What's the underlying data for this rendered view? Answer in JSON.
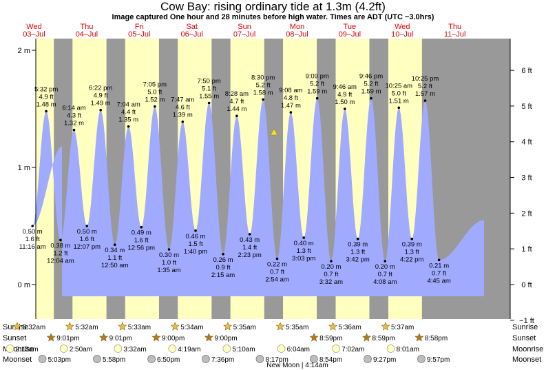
{
  "header": {
    "title": "Cow Bay: rising  ordinary tide at 1.3m (4.2ft)",
    "subtitle": "Image captured One hour and 28 minutes before high water. Times are ADT (UTC −3.0hrs)"
  },
  "chart_data": {
    "type": "area",
    "title": "Cow Bay: rising  ordinary tide at 1.3m (4.2ft)",
    "y_left_unit": "m",
    "y_right_unit": "ft",
    "y_left_ticks": [
      "0 m",
      "1 m",
      "2 m"
    ],
    "y_right_ticks": [
      "−1 ft",
      "0 ft",
      "1 ft",
      "2 ft",
      "3 ft",
      "4 ft",
      "5 ft",
      "6 ft"
    ],
    "ylim_m": [
      -0.2,
      2.07
    ],
    "days": [
      {
        "name": "Wed",
        "date": "03–Jul"
      },
      {
        "name": "Thu",
        "date": "04–Jul"
      },
      {
        "name": "Fri",
        "date": "05–Jul"
      },
      {
        "name": "Sat",
        "date": "06–Jul"
      },
      {
        "name": "Sun",
        "date": "07–Jul"
      },
      {
        "name": "Mon",
        "date": "08–Jul"
      },
      {
        "name": "Tue",
        "date": "09–Jul"
      },
      {
        "name": "Wed",
        "date": "10–Jul"
      },
      {
        "name": "Thu",
        "date": "11–Jul"
      }
    ],
    "tides": [
      {
        "day": 0,
        "time": "11:16 am",
        "m": "0.50 m",
        "ft": "1.6 ft",
        "h": 11.27,
        "v": 0.5,
        "type": "low"
      },
      {
        "day": 0,
        "time": "5:32 pm",
        "m": "1.48 m",
        "ft": "4.9 ft",
        "h": 17.53,
        "v": 1.48,
        "type": "high"
      },
      {
        "day": 1,
        "time": "12:04 am",
        "m": "0.38 m",
        "ft": "1.2 ft",
        "h": 0.07,
        "v": 0.38,
        "type": "low"
      },
      {
        "day": 1,
        "time": "6:14 am",
        "m": "1.32 m",
        "ft": "4.3 ft",
        "h": 6.23,
        "v": 1.32,
        "type": "high"
      },
      {
        "day": 1,
        "time": "12:07 pm",
        "m": "0.50 m",
        "ft": "1.6 ft",
        "h": 12.12,
        "v": 0.5,
        "type": "low"
      },
      {
        "day": 1,
        "time": "6:22 pm",
        "m": "1.49 m",
        "ft": "4.9 ft",
        "h": 18.37,
        "v": 1.49,
        "type": "high"
      },
      {
        "day": 2,
        "time": "12:50 am",
        "m": "0.34 m",
        "ft": "1.1 ft",
        "h": 0.83,
        "v": 0.34,
        "type": "low"
      },
      {
        "day": 2,
        "time": "7:04 am",
        "m": "1.35 m",
        "ft": "4.4 ft",
        "h": 7.07,
        "v": 1.35,
        "type": "high"
      },
      {
        "day": 2,
        "time": "12:56 pm",
        "m": "0.49 m",
        "ft": "1.6 ft",
        "h": 12.93,
        "v": 0.49,
        "type": "low"
      },
      {
        "day": 2,
        "time": "7:05 pm",
        "m": "1.52 m",
        "ft": "5.0 ft",
        "h": 19.08,
        "v": 1.52,
        "type": "high"
      },
      {
        "day": 3,
        "time": "1:35 am",
        "m": "0.30 m",
        "ft": "1.0 ft",
        "h": 1.58,
        "v": 0.3,
        "type": "low"
      },
      {
        "day": 3,
        "time": "7:47 am",
        "m": "1.39 m",
        "ft": "4.6 ft",
        "h": 7.78,
        "v": 1.39,
        "type": "high"
      },
      {
        "day": 3,
        "time": "1:40 pm",
        "m": "0.46 m",
        "ft": "1.5 ft",
        "h": 13.67,
        "v": 0.46,
        "type": "low"
      },
      {
        "day": 3,
        "time": "7:50 pm",
        "m": "1.55 m",
        "ft": "5.1 ft",
        "h": 19.83,
        "v": 1.55,
        "type": "high"
      },
      {
        "day": 4,
        "time": "2:15 am",
        "m": "0.26 m",
        "ft": "0.9 ft",
        "h": 2.25,
        "v": 0.26,
        "type": "low"
      },
      {
        "day": 4,
        "time": "8:28 am",
        "m": "1.44 m",
        "ft": "4.7 ft",
        "h": 8.47,
        "v": 1.44,
        "type": "high"
      },
      {
        "day": 4,
        "time": "2:23 pm",
        "m": "0.43 m",
        "ft": "1.4 ft",
        "h": 14.38,
        "v": 0.43,
        "type": "low"
      },
      {
        "day": 4,
        "time": "8:30 pm",
        "m": "1.58 m",
        "ft": "5.2 ft",
        "h": 20.5,
        "v": 1.58,
        "type": "high"
      },
      {
        "day": 5,
        "time": "2:54 am",
        "m": "0.22 m",
        "ft": "0.7 ft",
        "h": 2.9,
        "v": 0.22,
        "type": "low"
      },
      {
        "day": 5,
        "time": "9:08 am",
        "m": "1.47 m",
        "ft": "4.8 ft",
        "h": 9.13,
        "v": 1.47,
        "type": "high"
      },
      {
        "day": 5,
        "time": "3:03 pm",
        "m": "0.40 m",
        "ft": "1.3 ft",
        "h": 15.05,
        "v": 0.4,
        "type": "low"
      },
      {
        "day": 5,
        "time": "9:09 pm",
        "m": "1.59 m",
        "ft": "5.2 ft",
        "h": 21.15,
        "v": 1.59,
        "type": "high"
      },
      {
        "day": 6,
        "time": "3:32 am",
        "m": "0.20 m",
        "ft": "0.7 ft",
        "h": 3.53,
        "v": 0.2,
        "type": "low"
      },
      {
        "day": 6,
        "time": "9:46 am",
        "m": "1.50 m",
        "ft": "4.9 ft",
        "h": 9.77,
        "v": 1.5,
        "type": "high"
      },
      {
        "day": 6,
        "time": "3:42 pm",
        "m": "0.39 m",
        "ft": "1.3 ft",
        "h": 15.7,
        "v": 0.39,
        "type": "low"
      },
      {
        "day": 6,
        "time": "9:46 pm",
        "m": "1.59 m",
        "ft": "5.2 ft",
        "h": 21.77,
        "v": 1.59,
        "type": "high"
      },
      {
        "day": 7,
        "time": "4:08 am",
        "m": "0.20 m",
        "ft": "0.7 ft",
        "h": 4.13,
        "v": 0.2,
        "type": "low"
      },
      {
        "day": 7,
        "time": "10:25 am",
        "m": "1.51 m",
        "ft": "5.0 ft",
        "h": 10.42,
        "v": 1.51,
        "type": "high"
      },
      {
        "day": 7,
        "time": "4:22 pm",
        "m": "0.39 m",
        "ft": "1.3 ft",
        "h": 16.37,
        "v": 0.39,
        "type": "low"
      },
      {
        "day": 7,
        "time": "10:25 pm",
        "m": "1.57 m",
        "ft": "5.2 ft",
        "h": 22.42,
        "v": 1.57,
        "type": "high"
      },
      {
        "day": 8,
        "time": "4:45 am",
        "m": "0.21 m",
        "ft": "0.7 ft",
        "h": 4.75,
        "v": 0.21,
        "type": "low"
      }
    ],
    "current_level_m": 1.3,
    "sunrise": [
      {
        "day": 0,
        "time": "5:32am",
        "h": 5.53
      },
      {
        "day": 1,
        "time": "5:32am",
        "h": 5.53
      },
      {
        "day": 2,
        "time": "5:33am",
        "h": 5.55
      },
      {
        "day": 3,
        "time": "5:34am",
        "h": 5.57
      },
      {
        "day": 4,
        "time": "5:35am",
        "h": 5.58
      },
      {
        "day": 5,
        "time": "5:35am",
        "h": 5.58
      },
      {
        "day": 6,
        "time": "5:36am",
        "h": 5.6
      },
      {
        "day": 7,
        "time": "5:37am",
        "h": 5.62
      }
    ],
    "sunset": [
      {
        "day": 0,
        "time": "9:01pm",
        "h": 21.02
      },
      {
        "day": 1,
        "time": "9:01pm",
        "h": 21.02
      },
      {
        "day": 2,
        "time": "9:00pm",
        "h": 21.0
      },
      {
        "day": 3,
        "time": "9:00pm",
        "h": 21.0
      },
      {
        "day": 5,
        "time": "8:59pm",
        "h": 20.98
      },
      {
        "day": 6,
        "time": "8:59pm",
        "h": 20.98
      },
      {
        "day": 7,
        "time": "8:58pm",
        "h": 20.97
      }
    ],
    "moonrise": [
      {
        "day": 0,
        "time": "2:13am",
        "h": 2.22
      },
      {
        "day": 1,
        "time": "2:50am",
        "h": 2.83
      },
      {
        "day": 2,
        "time": "3:32am",
        "h": 3.53
      },
      {
        "day": 3,
        "time": "4:19am",
        "h": 4.32
      },
      {
        "day": 4,
        "time": "5:10am",
        "h": 5.17
      },
      {
        "day": 5,
        "time": "6:04am",
        "h": 6.07
      },
      {
        "day": 6,
        "time": "7:02am",
        "h": 7.03
      },
      {
        "day": 7,
        "time": "8:01am",
        "h": 8.02
      }
    ],
    "moonset": [
      {
        "day": 0,
        "time": "5:03pm",
        "h": 17.05
      },
      {
        "day": 1,
        "time": "5:58pm",
        "h": 17.97
      },
      {
        "day": 2,
        "time": "6:50pm",
        "h": 18.83
      },
      {
        "day": 3,
        "time": "7:36pm",
        "h": 19.6
      },
      {
        "day": 4,
        "time": "8:17pm",
        "h": 20.28
      },
      {
        "day": 5,
        "time": "8:54pm",
        "h": 20.9
      },
      {
        "day": 6,
        "time": "9:27pm",
        "h": 21.45
      },
      {
        "day": 7,
        "time": "9:57pm",
        "h": 21.95
      }
    ],
    "row_labels": [
      "Sunrise",
      "Sunset",
      "Moonrise",
      "Moonset"
    ],
    "moon_phase_note": "New Moon | 4:14am",
    "colors": {
      "night": "#999999",
      "day": "#ffffc0",
      "water": "#a0aaff",
      "day_label": "#e00000",
      "sun_icon": "#e8c040",
      "sunset_icon": "#b07a20",
      "moonrise_icon": "#ffffc8",
      "moonset_icon": "#bdbdbd"
    }
  }
}
